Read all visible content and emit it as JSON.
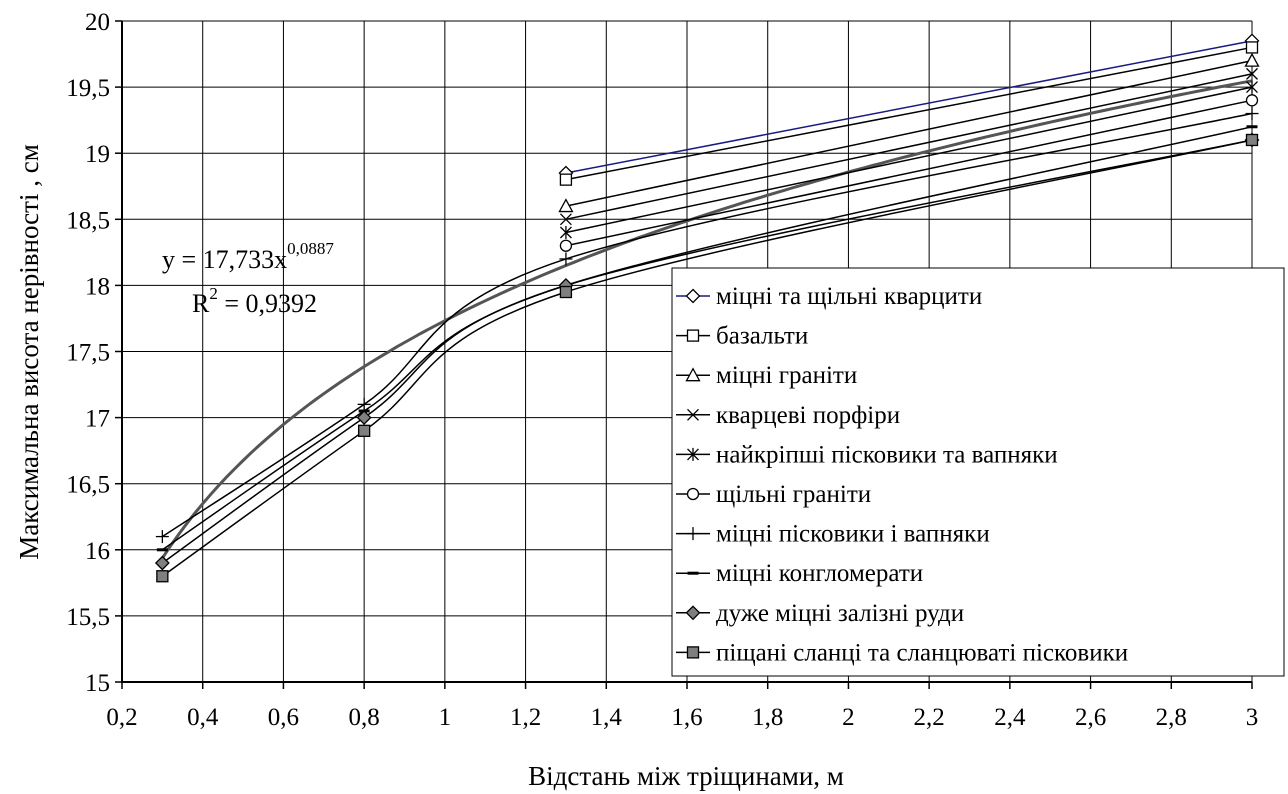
{
  "chart_data": {
    "type": "line",
    "title": "",
    "xlabel": "Відстань між тріщинами, м",
    "ylabel": "Максимальна висота нерівності , см",
    "xlim": [
      0.2,
      3
    ],
    "ylim": [
      15,
      20
    ],
    "xticks": [
      0.2,
      0.4,
      0.6,
      0.8,
      1,
      1.2,
      1.4,
      1.6,
      1.8,
      2,
      2.2,
      2.4,
      2.6,
      2.8,
      3
    ],
    "xtick_labels": [
      "0,2",
      "0,4",
      "0,6",
      "0,8",
      "1",
      "1,2",
      "1,4",
      "1,6",
      "1,8",
      "2",
      "2,2",
      "2,4",
      "2,6",
      "2,8",
      "3"
    ],
    "yticks": [
      15,
      15.5,
      16,
      16.5,
      17,
      17.5,
      18,
      18.5,
      19,
      19.5,
      20
    ],
    "ytick_labels": [
      "15",
      "15,5",
      "16",
      "16,5",
      "17",
      "17,5",
      "18",
      "18,5",
      "19",
      "19,5",
      "20"
    ],
    "grid": true,
    "legend_position": "right",
    "series": [
      {
        "name": "міцні та щільні кварцити",
        "marker": "diamond-open",
        "color": "#1a1a80",
        "x": [
          1.3,
          3
        ],
        "y": [
          18.85,
          19.85
        ]
      },
      {
        "name": "базальти",
        "marker": "square-open",
        "color": "#000000",
        "x": [
          1.3,
          3
        ],
        "y": [
          18.8,
          19.8
        ]
      },
      {
        "name": "міцні граніти",
        "marker": "triangle-open",
        "color": "#000000",
        "x": [
          1.3,
          3
        ],
        "y": [
          18.6,
          19.7
        ]
      },
      {
        "name": "кварцеві порфіри",
        "marker": "x",
        "color": "#000000",
        "x": [
          1.3,
          3
        ],
        "y": [
          18.5,
          19.6
        ]
      },
      {
        "name": "найкріпші пісковики та вапняки",
        "marker": "star",
        "color": "#000000",
        "x": [
          1.3,
          3
        ],
        "y": [
          18.4,
          19.5
        ]
      },
      {
        "name": "щільні граніти",
        "marker": "circle-open",
        "color": "#000000",
        "x": [
          1.3,
          3
        ],
        "y": [
          18.3,
          19.4
        ]
      },
      {
        "name": "міцні пісковики і вапняки",
        "marker": "plus",
        "color": "#000000",
        "x": [
          0.3,
          0.8,
          1.3,
          3
        ],
        "y": [
          16.1,
          17.1,
          18.2,
          19.3
        ]
      },
      {
        "name": "міцні конгломерати",
        "marker": "dash",
        "color": "#000000",
        "x": [
          0.3,
          0.8,
          1.3,
          3
        ],
        "y": [
          16.0,
          17.05,
          18.0,
          19.2
        ]
      },
      {
        "name": "дуже міцні залізні руди",
        "marker": "diamond-filled",
        "color": "#000000",
        "x": [
          0.3,
          0.8,
          1.3,
          3
        ],
        "y": [
          15.9,
          17.0,
          18.0,
          19.1
        ]
      },
      {
        "name": "піщані сланці та сланцюваті пісковики",
        "marker": "square-filled",
        "color": "#000000",
        "x": [
          0.3,
          0.8,
          1.3,
          3
        ],
        "y": [
          15.8,
          16.9,
          17.95,
          19.1
        ]
      }
    ],
    "trendline": {
      "type": "power",
      "a": 17.733,
      "b": 0.0887,
      "color": "#555555"
    },
    "annotation": {
      "equation_prefix": "y = 17,733x",
      "equation_exponent": "0,0887",
      "r2_prefix": "R",
      "r2_exponent": "2",
      "r2_value": " = 0,9392"
    }
  }
}
